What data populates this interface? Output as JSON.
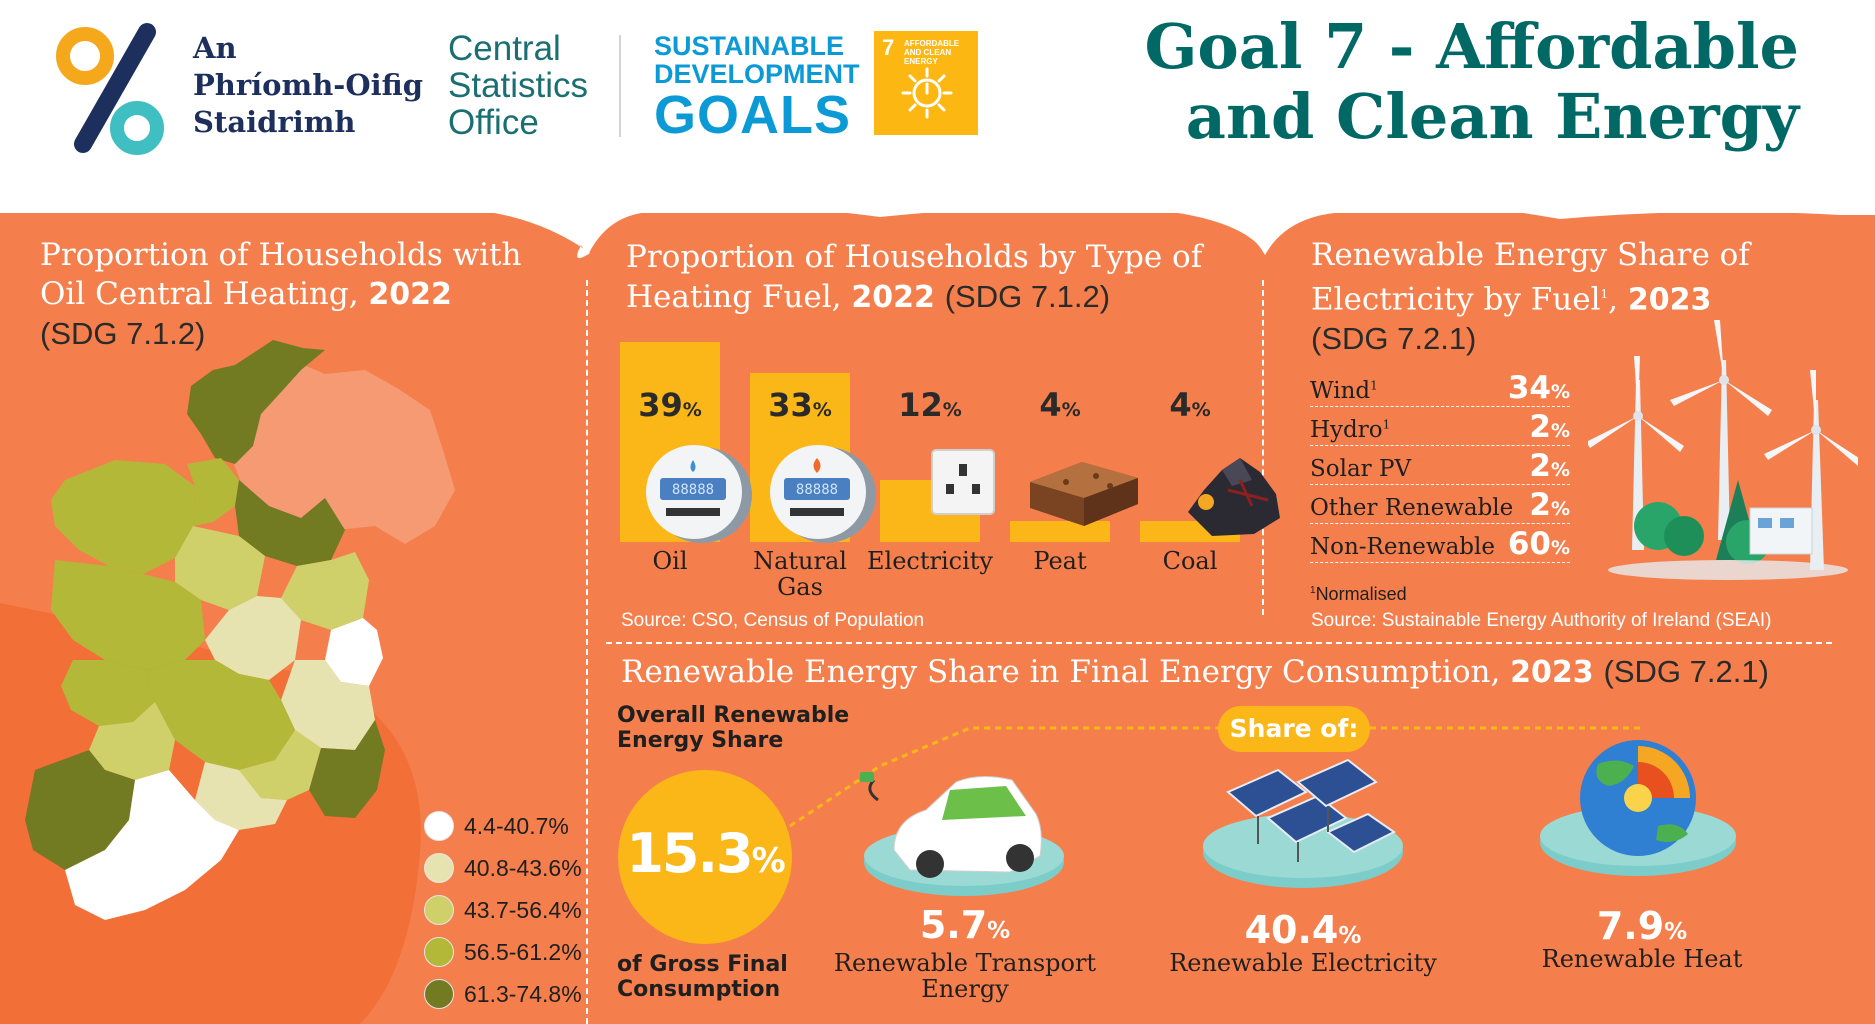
{
  "header": {
    "org_irish": [
      "An",
      "Phríomh-Oifig",
      "Staidrimh"
    ],
    "org_english": [
      "Central",
      "Statistics",
      "Office"
    ],
    "sdg_wordmark": [
      "SUSTAINABLE",
      "DEVELOPMENT",
      "GOALS"
    ],
    "goal_tile": {
      "number": "7",
      "text": "AFFORDABLE AND CLEAN ENERGY",
      "color": "#fdb713"
    },
    "title_lines": [
      "Goal 7 - Affordable",
      "and Clean Energy"
    ]
  },
  "oil_heating": {
    "title_line1": "Proportion of Households with",
    "title_line2_text": "Oil Central Heating, ",
    "title_year": "2022",
    "title_code": "(SDG 7.1.2)",
    "legend": [
      {
        "label": "4.4-40.7%",
        "color": "#ffffff"
      },
      {
        "label": "40.8-43.6%",
        "color": "#e7e3b1"
      },
      {
        "label": "43.7-56.4%",
        "color": "#d0d06a"
      },
      {
        "label": "56.5-61.2%",
        "color": "#b3b838"
      },
      {
        "label": "61.3-74.8%",
        "color": "#727a22"
      }
    ]
  },
  "heating_fuel": {
    "title_line1": "Proportion of Households by Type of",
    "title_line2_text": "Heating Fuel, ",
    "title_year": "2022",
    "title_code": "(SDG 7.1.2)",
    "source": "Source: CSO, Census of Population"
  },
  "chart_data": {
    "type": "bar",
    "categories": [
      "Oil",
      "Natural Gas",
      "Electricity",
      "Peat",
      "Coal"
    ],
    "values": [
      39,
      33,
      12,
      4,
      4
    ],
    "unit": "%",
    "title": "Proportion of Households by Type of Heating Fuel, 2022 (SDG 7.1.2)",
    "ylim": [
      0,
      39
    ],
    "bar_color": "#fbb718"
  },
  "fuel_labels": [
    [
      "Oil"
    ],
    [
      "Natural",
      "Gas"
    ],
    [
      "Electricity"
    ],
    [
      "Peat"
    ],
    [
      "Coal"
    ]
  ],
  "renewable_electricity": {
    "title_line1": "Renewable Energy Share of",
    "title_line2_text": "Electricity by Fuel",
    "title_sup": "1",
    "title_year": "2023",
    "title_code": "(SDG 7.2.1)",
    "rows": [
      {
        "name": "Wind",
        "sup": "1",
        "value": "34",
        "unit": "%"
      },
      {
        "name": "Hydro",
        "sup": "1",
        "value": "2",
        "unit": "%"
      },
      {
        "name": "Solar PV",
        "sup": "",
        "value": "2",
        "unit": "%"
      },
      {
        "name": "Other Renewable",
        "sup": "",
        "value": "2",
        "unit": "%"
      },
      {
        "name": "Non-Renewable",
        "sup": "",
        "value": "60",
        "unit": "%"
      }
    ],
    "footnote_sup": "1",
    "footnote": "Normalised",
    "source": "Source: Sustainable Energy Authority of Ireland (SEAI)"
  },
  "final_energy": {
    "title_text": "Renewable Energy Share in Final Energy Consumption, ",
    "title_year": "2023",
    "title_code": "(SDG 7.2.1)",
    "overall_label": [
      "Overall Renewable",
      "Energy Share"
    ],
    "overall_value": "15.3",
    "overall_unit": "%",
    "overall_caption": [
      "of Gross Final",
      "Consumption"
    ],
    "share_of": "Share of:",
    "shares": [
      {
        "value": "5.7",
        "unit": "%",
        "label": [
          "Renewable Transport",
          "Energy"
        ]
      },
      {
        "value": "40.4",
        "unit": "%",
        "label": [
          "Renewable Electricity"
        ]
      },
      {
        "value": "7.9",
        "unit": "%",
        "label": [
          "Renewable Heat"
        ]
      }
    ]
  },
  "colors": {
    "background_orange": "#f47f4c",
    "title_teal": "#006966",
    "accent_yellow": "#fbb718"
  }
}
